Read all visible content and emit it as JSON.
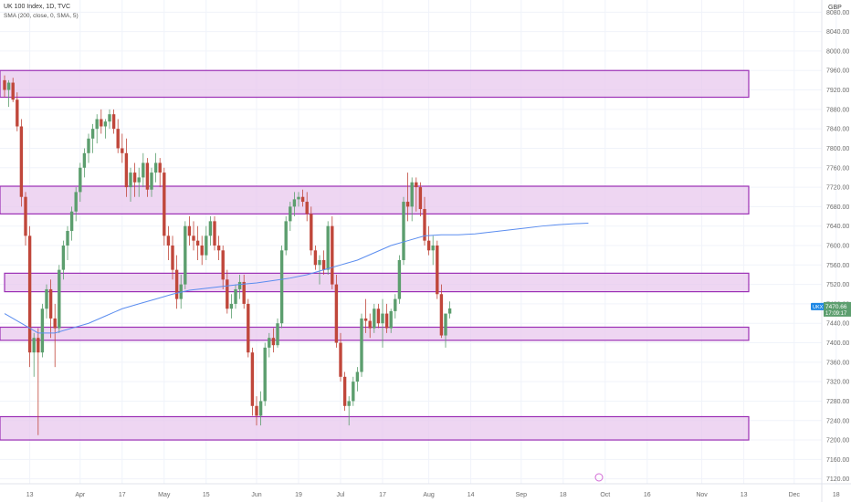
{
  "header": {
    "title": "UK 100 Index, 1D, TVC",
    "indicator": "SMA (200, close, 0, SMA, 5)"
  },
  "currency": "GBP",
  "price_label": {
    "symbol": "UKX",
    "price": "7470.66",
    "countdown": "17:09:17",
    "value": 7470.66
  },
  "colors": {
    "up": "#5c9e6e",
    "down": "#c0473b",
    "sma": "#5b8def",
    "zone_fill": "#e8c8ee",
    "zone_border": "#9b2fb5",
    "grid": "#f0f3fa",
    "tag": "#1e88e5"
  },
  "chart_data": {
    "type": "candlestick",
    "y_range": [
      7100,
      8100
    ],
    "y_ticks": [
      7120,
      7160,
      7200,
      7240,
      7280,
      7320,
      7360,
      7400,
      7440,
      7480,
      7520,
      7560,
      7600,
      7640,
      7680,
      7720,
      7760,
      7800,
      7840,
      7880,
      7920,
      7960,
      8000,
      8040,
      8080
    ],
    "x_ticks": [
      {
        "label": "13",
        "bar": 6
      },
      {
        "label": "Apr",
        "bar": 18
      },
      {
        "label": "17",
        "bar": 28
      },
      {
        "label": "May",
        "bar": 38
      },
      {
        "label": "15",
        "bar": 48
      },
      {
        "label": "Jun",
        "bar": 60
      },
      {
        "label": "19",
        "bar": 70
      },
      {
        "label": "Jul",
        "bar": 80
      },
      {
        "label": "17",
        "bar": 90
      },
      {
        "label": "Aug",
        "bar": 101
      },
      {
        "label": "14",
        "bar": 111
      },
      {
        "label": "Sep",
        "bar": 123
      },
      {
        "label": "18",
        "bar": 133
      },
      {
        "label": "Oct",
        "bar": 143
      },
      {
        "label": "16",
        "bar": 153
      },
      {
        "label": "Nov",
        "bar": 166
      },
      {
        "label": "13",
        "bar": 176
      },
      {
        "label": "Dec",
        "bar": 188
      },
      {
        "label": "18",
        "bar": 198
      }
    ],
    "zones": [
      {
        "low": 7905,
        "high": 7960
      },
      {
        "low": 7665,
        "high": 7722
      },
      {
        "low": 7505,
        "high": 7543
      },
      {
        "low": 7405,
        "high": 7432
      },
      {
        "low": 7200,
        "high": 7248
      }
    ],
    "candles": [
      [
        7940,
        7950,
        7905,
        7920
      ],
      [
        7920,
        7940,
        7885,
        7935
      ],
      [
        7935,
        7945,
        7895,
        7900
      ],
      [
        7900,
        7915,
        7835,
        7845
      ],
      [
        7845,
        7860,
        7680,
        7700
      ],
      [
        7700,
        7710,
        7600,
        7620
      ],
      [
        7620,
        7640,
        7350,
        7380
      ],
      [
        7380,
        7420,
        7330,
        7410
      ],
      [
        7410,
        7430,
        7210,
        7380
      ],
      [
        7380,
        7480,
        7370,
        7470
      ],
      [
        7470,
        7520,
        7450,
        7510
      ],
      [
        7510,
        7530,
        7410,
        7450
      ],
      [
        7450,
        7480,
        7350,
        7430
      ],
      [
        7430,
        7560,
        7420,
        7550
      ],
      [
        7550,
        7610,
        7530,
        7600
      ],
      [
        7600,
        7640,
        7570,
        7630
      ],
      [
        7630,
        7680,
        7610,
        7670
      ],
      [
        7670,
        7720,
        7650,
        7710
      ],
      [
        7710,
        7770,
        7690,
        7760
      ],
      [
        7760,
        7800,
        7740,
        7790
      ],
      [
        7790,
        7830,
        7770,
        7820
      ],
      [
        7820,
        7850,
        7790,
        7840
      ],
      [
        7840,
        7870,
        7810,
        7860
      ],
      [
        7860,
        7880,
        7830,
        7845
      ],
      [
        7845,
        7860,
        7820,
        7855
      ],
      [
        7855,
        7880,
        7840,
        7870
      ],
      [
        7870,
        7880,
        7830,
        7840
      ],
      [
        7840,
        7860,
        7790,
        7800
      ],
      [
        7800,
        7830,
        7770,
        7790
      ],
      [
        7790,
        7820,
        7700,
        7720
      ],
      [
        7720,
        7760,
        7690,
        7750
      ],
      [
        7750,
        7770,
        7700,
        7730
      ],
      [
        7730,
        7760,
        7700,
        7740
      ],
      [
        7740,
        7790,
        7720,
        7770
      ],
      [
        7770,
        7780,
        7700,
        7715
      ],
      [
        7715,
        7760,
        7700,
        7750
      ],
      [
        7750,
        7790,
        7730,
        7770
      ],
      [
        7770,
        7780,
        7720,
        7750
      ],
      [
        7750,
        7760,
        7600,
        7620
      ],
      [
        7620,
        7640,
        7570,
        7600
      ],
      [
        7600,
        7620,
        7530,
        7550
      ],
      [
        7550,
        7580,
        7470,
        7490
      ],
      [
        7490,
        7540,
        7470,
        7520
      ],
      [
        7520,
        7650,
        7510,
        7640
      ],
      [
        7640,
        7660,
        7600,
        7620
      ],
      [
        7620,
        7650,
        7590,
        7610
      ],
      [
        7610,
        7640,
        7570,
        7600
      ],
      [
        7600,
        7620,
        7560,
        7580
      ],
      [
        7580,
        7640,
        7570,
        7620
      ],
      [
        7620,
        7660,
        7600,
        7650
      ],
      [
        7650,
        7660,
        7590,
        7600
      ],
      [
        7600,
        7620,
        7570,
        7590
      ],
      [
        7590,
        7600,
        7510,
        7530
      ],
      [
        7530,
        7550,
        7460,
        7470
      ],
      [
        7470,
        7500,
        7450,
        7480
      ],
      [
        7480,
        7520,
        7470,
        7510
      ],
      [
        7510,
        7540,
        7490,
        7525
      ],
      [
        7525,
        7540,
        7470,
        7480
      ],
      [
        7480,
        7490,
        7370,
        7380
      ],
      [
        7380,
        7390,
        7250,
        7270
      ],
      [
        7270,
        7290,
        7230,
        7250
      ],
      [
        7250,
        7300,
        7230,
        7280
      ],
      [
        7280,
        7400,
        7270,
        7390
      ],
      [
        7390,
        7420,
        7370,
        7410
      ],
      [
        7410,
        7430,
        7380,
        7395
      ],
      [
        7395,
        7450,
        7390,
        7440
      ],
      [
        7440,
        7600,
        7430,
        7590
      ],
      [
        7590,
        7660,
        7580,
        7650
      ],
      [
        7650,
        7690,
        7630,
        7680
      ],
      [
        7680,
        7710,
        7660,
        7695
      ],
      [
        7695,
        7710,
        7680,
        7700
      ],
      [
        7700,
        7715,
        7680,
        7690
      ],
      [
        7690,
        7710,
        7650,
        7665
      ],
      [
        7665,
        7680,
        7580,
        7590
      ],
      [
        7590,
        7600,
        7550,
        7560
      ],
      [
        7560,
        7580,
        7520,
        7570
      ],
      [
        7570,
        7590,
        7540,
        7550
      ],
      [
        7550,
        7650,
        7540,
        7640
      ],
      [
        7640,
        7660,
        7510,
        7520
      ],
      [
        7520,
        7540,
        7390,
        7400
      ],
      [
        7400,
        7420,
        7320,
        7330
      ],
      [
        7330,
        7340,
        7260,
        7270
      ],
      [
        7270,
        7290,
        7230,
        7280
      ],
      [
        7280,
        7330,
        7270,
        7320
      ],
      [
        7320,
        7350,
        7300,
        7340
      ],
      [
        7340,
        7460,
        7330,
        7450
      ],
      [
        7450,
        7490,
        7420,
        7445
      ],
      [
        7445,
        7460,
        7410,
        7430
      ],
      [
        7430,
        7480,
        7420,
        7470
      ],
      [
        7470,
        7480,
        7430,
        7440
      ],
      [
        7440,
        7490,
        7390,
        7460
      ],
      [
        7460,
        7480,
        7420,
        7430
      ],
      [
        7430,
        7470,
        7420,
        7465
      ],
      [
        7465,
        7500,
        7450,
        7490
      ],
      [
        7490,
        7580,
        7480,
        7570
      ],
      [
        7570,
        7700,
        7560,
        7690
      ],
      [
        7690,
        7750,
        7650,
        7680
      ],
      [
        7680,
        7740,
        7650,
        7730
      ],
      [
        7730,
        7740,
        7670,
        7720
      ],
      [
        7720,
        7730,
        7660,
        7675
      ],
      [
        7675,
        7700,
        7600,
        7610
      ],
      [
        7610,
        7640,
        7580,
        7590
      ],
      [
        7590,
        7620,
        7560,
        7600
      ],
      [
        7600,
        7610,
        7490,
        7500
      ],
      [
        7500,
        7520,
        7410,
        7415
      ],
      [
        7415,
        7460,
        7390,
        7460
      ],
      [
        7460,
        7485,
        7450,
        7470.66
      ]
    ],
    "sma": [
      [
        0,
        7460
      ],
      [
        4,
        7440
      ],
      [
        8,
        7420
      ],
      [
        12,
        7420
      ],
      [
        16,
        7430
      ],
      [
        20,
        7440
      ],
      [
        24,
        7455
      ],
      [
        28,
        7470
      ],
      [
        32,
        7480
      ],
      [
        36,
        7490
      ],
      [
        40,
        7500
      ],
      [
        44,
        7508
      ],
      [
        48,
        7512
      ],
      [
        52,
        7516
      ],
      [
        56,
        7520
      ],
      [
        60,
        7523
      ],
      [
        64,
        7528
      ],
      [
        68,
        7533
      ],
      [
        72,
        7540
      ],
      [
        76,
        7550
      ],
      [
        80,
        7560
      ],
      [
        84,
        7570
      ],
      [
        88,
        7585
      ],
      [
        92,
        7600
      ],
      [
        96,
        7610
      ],
      [
        100,
        7620
      ],
      [
        104,
        7622
      ],
      [
        108,
        7622
      ],
      [
        112,
        7624
      ],
      [
        116,
        7628
      ],
      [
        120,
        7632
      ],
      [
        124,
        7636
      ],
      [
        128,
        7640
      ],
      [
        132,
        7643
      ],
      [
        136,
        7645
      ],
      [
        139,
        7646
      ]
    ]
  }
}
